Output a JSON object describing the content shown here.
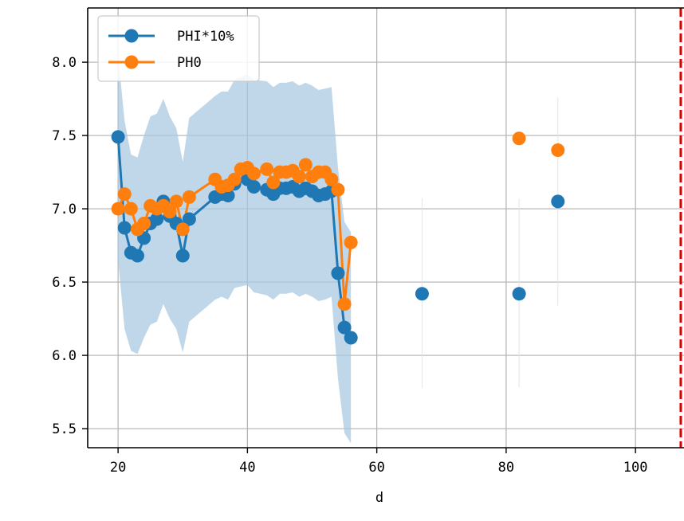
{
  "chart_data": {
    "type": "line",
    "xlabel": "d",
    "ylabel": "",
    "xlim": [
      15.3,
      107.5
    ],
    "ylim": [
      5.37,
      8.37
    ],
    "xticks": [
      20,
      40,
      60,
      80,
      100
    ],
    "xtick_labels": [
      "20",
      "40",
      "60",
      "80",
      "100"
    ],
    "yticks": [
      5.5,
      6.0,
      6.5,
      7.0,
      7.5,
      8.0
    ],
    "ytick_labels": [
      "5.5",
      "6.0",
      "6.5",
      "7.0",
      "7.5",
      "8.0"
    ],
    "grid": true,
    "legend_position": "upper-left",
    "series": [
      {
        "name": "PHI*10%",
        "color": "#1f77b4",
        "connected": [
          [
            20,
            7.49
          ],
          [
            21,
            6.87
          ],
          [
            22,
            6.7
          ],
          [
            23,
            6.68
          ],
          [
            24,
            6.8
          ],
          [
            25,
            6.9
          ],
          [
            26,
            6.93
          ],
          [
            27,
            7.05
          ],
          [
            28,
            6.95
          ],
          [
            29,
            6.9
          ],
          [
            30,
            6.68
          ],
          [
            31,
            6.93
          ],
          [
            35,
            7.08
          ],
          [
            36,
            7.1
          ],
          [
            37,
            7.09
          ],
          [
            38,
            7.17
          ],
          [
            40,
            7.2
          ],
          [
            41,
            7.15
          ],
          [
            43,
            7.13
          ],
          [
            44,
            7.1
          ],
          [
            45,
            7.14
          ],
          [
            46,
            7.14
          ],
          [
            47,
            7.15
          ],
          [
            48,
            7.12
          ],
          [
            49,
            7.14
          ],
          [
            50,
            7.12
          ],
          [
            51,
            7.09
          ],
          [
            52,
            7.1
          ],
          [
            53,
            7.12
          ],
          [
            54,
            6.56
          ],
          [
            55,
            6.19
          ],
          [
            56,
            6.12
          ]
        ],
        "isolated": [
          [
            67,
            6.42
          ],
          [
            82,
            6.42
          ],
          [
            88,
            7.05
          ]
        ]
      },
      {
        "name": "PH0",
        "color": "#ff7f0e",
        "connected": [
          [
            20,
            7.0
          ],
          [
            21,
            7.1
          ],
          [
            22,
            7.0
          ],
          [
            23,
            6.86
          ],
          [
            24,
            6.9
          ],
          [
            25,
            7.02
          ],
          [
            26,
            7.0
          ],
          [
            27,
            7.02
          ],
          [
            28,
            6.98
          ],
          [
            29,
            7.05
          ],
          [
            30,
            6.86
          ],
          [
            31,
            7.08
          ],
          [
            35,
            7.2
          ],
          [
            36,
            7.15
          ],
          [
            37,
            7.16
          ],
          [
            38,
            7.2
          ],
          [
            39,
            7.27
          ],
          [
            40,
            7.28
          ],
          [
            41,
            7.24
          ],
          [
            43,
            7.27
          ],
          [
            44,
            7.18
          ],
          [
            45,
            7.25
          ],
          [
            46,
            7.25
          ],
          [
            47,
            7.26
          ],
          [
            48,
            7.22
          ],
          [
            49,
            7.3
          ],
          [
            50,
            7.22
          ],
          [
            51,
            7.25
          ],
          [
            52,
            7.25
          ],
          [
            53,
            7.2
          ],
          [
            54,
            7.13
          ],
          [
            55,
            6.35
          ],
          [
            56,
            6.77
          ]
        ],
        "isolated": [
          [
            82,
            7.48
          ],
          [
            88,
            7.4
          ]
        ]
      }
    ],
    "confidence_band": {
      "color": "#a6c8e0",
      "points": [
        [
          20,
          8.05,
          6.65
        ],
        [
          21,
          7.6,
          6.18
        ],
        [
          22,
          7.37,
          6.03
        ],
        [
          23,
          7.35,
          6.01
        ],
        [
          24,
          7.5,
          6.12
        ],
        [
          25,
          7.63,
          6.21
        ],
        [
          26,
          7.65,
          6.23
        ],
        [
          27,
          7.75,
          6.35
        ],
        [
          28,
          7.63,
          6.25
        ],
        [
          29,
          7.55,
          6.18
        ],
        [
          30,
          7.32,
          6.02
        ],
        [
          31,
          7.62,
          6.23
        ],
        [
          35,
          7.77,
          6.38
        ],
        [
          36,
          7.8,
          6.4
        ],
        [
          37,
          7.8,
          6.38
        ],
        [
          38,
          7.88,
          6.46
        ],
        [
          40,
          7.92,
          6.48
        ],
        [
          41,
          7.88,
          6.43
        ],
        [
          43,
          7.87,
          6.41
        ],
        [
          44,
          7.83,
          6.38
        ],
        [
          45,
          7.86,
          6.42
        ],
        [
          46,
          7.86,
          6.42
        ],
        [
          47,
          7.87,
          6.43
        ],
        [
          48,
          7.84,
          6.4
        ],
        [
          49,
          7.86,
          6.42
        ],
        [
          50,
          7.84,
          6.4
        ],
        [
          51,
          7.81,
          6.37
        ],
        [
          52,
          7.82,
          6.38
        ],
        [
          53,
          7.83,
          6.4
        ],
        [
          54,
          7.28,
          5.84
        ],
        [
          55,
          6.91,
          5.47
        ],
        [
          56,
          6.84,
          5.4
        ]
      ]
    },
    "error_bars": [
      {
        "x": 67,
        "low": 5.78,
        "high": 7.07
      },
      {
        "x": 82,
        "low": 5.78,
        "high": 7.07
      },
      {
        "x": 88,
        "low": 6.34,
        "high": 7.76
      }
    ],
    "reference_line": {
      "x": 107,
      "color": "#dd0000",
      "style": "dashed"
    }
  }
}
